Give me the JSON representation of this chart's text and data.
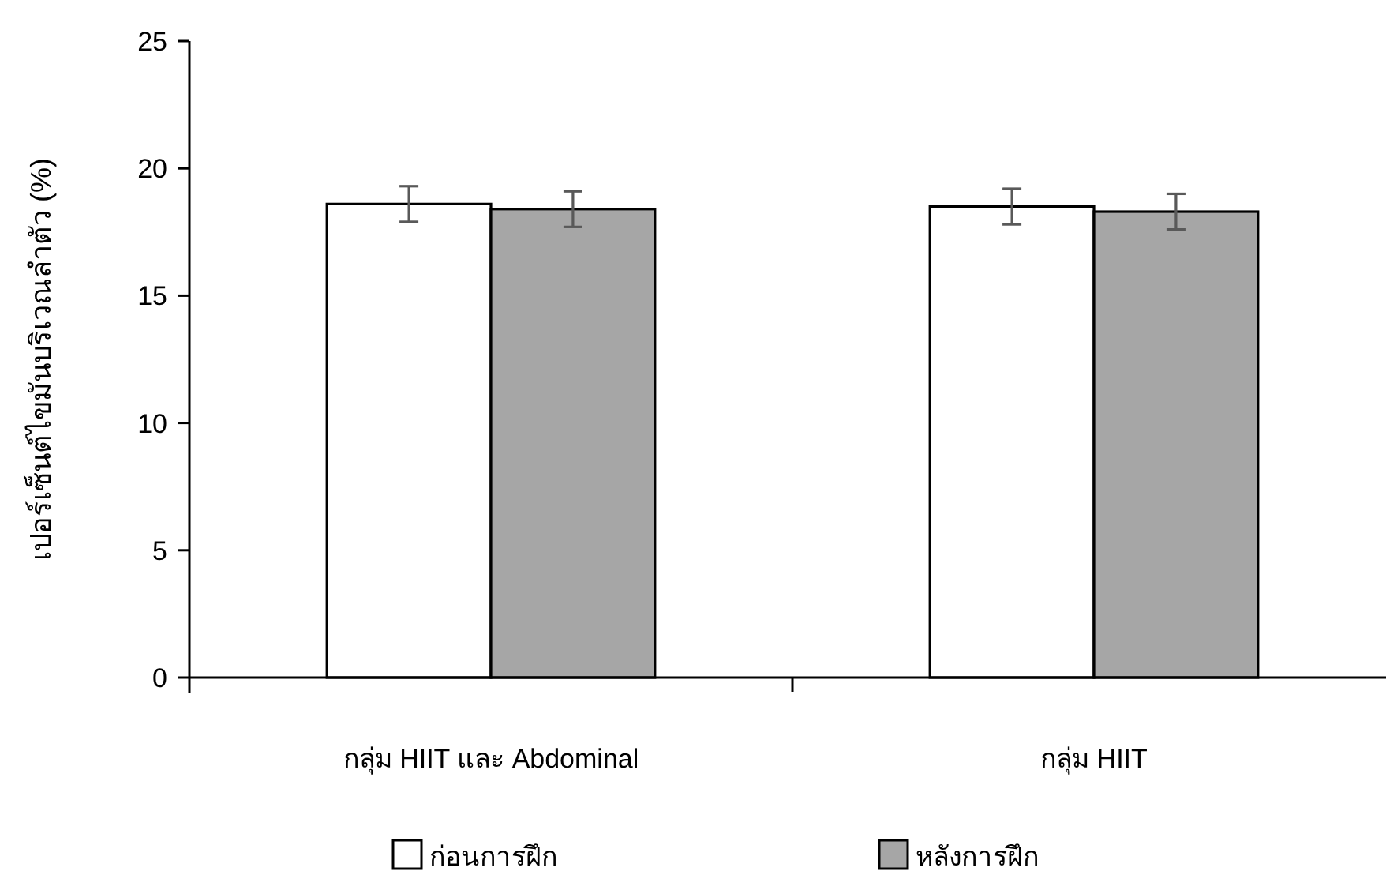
{
  "chart_data": {
    "type": "bar",
    "ylabel": "เปอร์เซ็นต์ไขมันบริเวณลำตัว (%)",
    "categories": [
      "กลุ่ม HIIT และ Abdominal",
      "กลุ่ม HIIT"
    ],
    "series": [
      {
        "name": "ก่อนการฝึก",
        "color": "#ffffff",
        "values": [
          18.6,
          18.5
        ],
        "errors": [
          0.7,
          0.7
        ]
      },
      {
        "name": "หลังการฝึก",
        "color": "#a6a6a6",
        "values": [
          18.4,
          18.3
        ],
        "errors": [
          0.7,
          0.7
        ]
      }
    ],
    "ylim": [
      0,
      25
    ],
    "yticks": [
      0,
      5,
      10,
      15,
      20,
      25
    ],
    "grid": false,
    "legend": "bottom"
  }
}
